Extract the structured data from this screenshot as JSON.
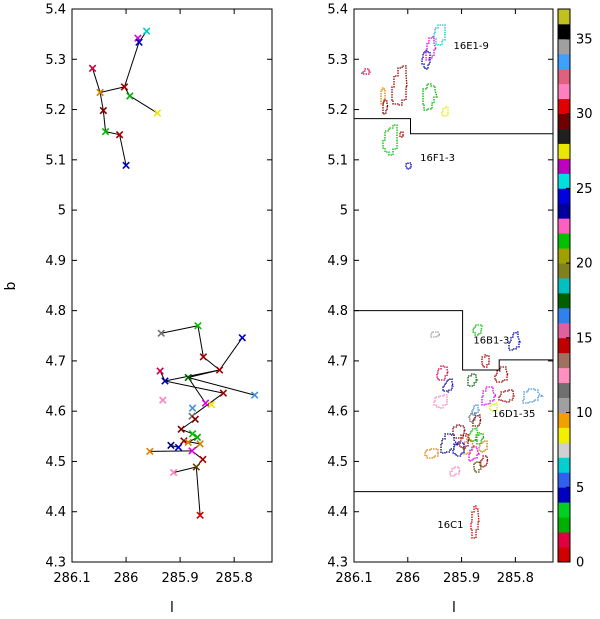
{
  "chart_data": [
    {
      "type": "scatter",
      "title": "",
      "xlabel": "l",
      "ylabel": "b",
      "xlim": [
        286.1,
        285.73
      ],
      "ylim": [
        4.3,
        5.4
      ],
      "xticks": [
        286.1,
        286.0,
        285.9,
        285.8
      ],
      "xtick_labels": [
        "286.1",
        "286",
        "285.9",
        "285.8"
      ],
      "yticks": [
        4.3,
        4.4,
        4.5,
        4.6,
        4.7,
        4.8,
        4.9,
        5.0,
        5.1,
        5.2,
        5.3,
        5.4
      ],
      "ytick_labels": [
        "4.3",
        "4.4",
        "4.5",
        "4.6",
        "4.7",
        "4.8",
        "4.9",
        "5",
        "5.1",
        "5.2",
        "5.3",
        "5.4"
      ],
      "points": [
        {
          "l": 285.962,
          "b": 5.356,
          "color": "#00c8c8"
        },
        {
          "l": 285.978,
          "b": 5.342,
          "color": "#e000e0"
        },
        {
          "l": 285.976,
          "b": 5.334,
          "color": "#0000b0"
        },
        {
          "l": 286.062,
          "b": 5.282,
          "color": "#d00040"
        },
        {
          "l": 286.048,
          "b": 5.234,
          "color": "#d08000"
        },
        {
          "l": 286.003,
          "b": 5.245,
          "color": "#a00000"
        },
        {
          "l": 285.993,
          "b": 5.227,
          "color": "#00b000"
        },
        {
          "l": 285.942,
          "b": 5.193,
          "color": "#e8e800"
        },
        {
          "l": 286.042,
          "b": 5.198,
          "color": "#800000"
        },
        {
          "l": 286.038,
          "b": 5.156,
          "color": "#00c000"
        },
        {
          "l": 286.012,
          "b": 5.15,
          "color": "#a00000"
        },
        {
          "l": 286.0,
          "b": 5.089,
          "color": "#0000c0"
        },
        {
          "l": 285.935,
          "b": 4.755,
          "color": "#707070"
        },
        {
          "l": 285.867,
          "b": 4.77,
          "color": "#00c000"
        },
        {
          "l": 285.785,
          "b": 4.746,
          "color": "#0000c0"
        },
        {
          "l": 285.857,
          "b": 4.708,
          "color": "#a00000"
        },
        {
          "l": 285.827,
          "b": 4.682,
          "color": "#a00000"
        },
        {
          "l": 285.937,
          "b": 4.68,
          "color": "#d00040"
        },
        {
          "l": 285.928,
          "b": 4.66,
          "color": "#0000b0"
        },
        {
          "l": 285.885,
          "b": 4.667,
          "color": "#006000"
        },
        {
          "l": 285.82,
          "b": 4.636,
          "color": "#a00000"
        },
        {
          "l": 285.762,
          "b": 4.632,
          "color": "#4090e0"
        },
        {
          "l": 285.932,
          "b": 4.622,
          "color": "#ff80c0"
        },
        {
          "l": 285.853,
          "b": 4.616,
          "color": "#e000e0"
        },
        {
          "l": 285.842,
          "b": 4.613,
          "color": "#e8e800"
        },
        {
          "l": 285.877,
          "b": 4.606,
          "color": "#4090e0"
        },
        {
          "l": 285.878,
          "b": 4.59,
          "color": "#707070"
        },
        {
          "l": 285.872,
          "b": 4.584,
          "color": "#800000"
        },
        {
          "l": 285.898,
          "b": 4.564,
          "color": "#800000"
        },
        {
          "l": 285.877,
          "b": 4.555,
          "color": "#00c000"
        },
        {
          "l": 285.868,
          "b": 4.548,
          "color": "#00b000"
        },
        {
          "l": 285.893,
          "b": 4.541,
          "color": "#a00000"
        },
        {
          "l": 285.885,
          "b": 4.538,
          "color": "#d08000"
        },
        {
          "l": 285.863,
          "b": 4.535,
          "color": "#d08000"
        },
        {
          "l": 285.917,
          "b": 4.532,
          "color": "#000080"
        },
        {
          "l": 285.903,
          "b": 4.528,
          "color": "#0000c0"
        },
        {
          "l": 285.878,
          "b": 4.521,
          "color": "#e000e0"
        },
        {
          "l": 285.956,
          "b": 4.52,
          "color": "#e08000"
        },
        {
          "l": 285.858,
          "b": 4.504,
          "color": "#a00000"
        },
        {
          "l": 285.87,
          "b": 4.489,
          "color": "#604000"
        },
        {
          "l": 285.912,
          "b": 4.478,
          "color": "#ff80c0"
        },
        {
          "l": 285.863,
          "b": 4.393,
          "color": "#d00000"
        }
      ],
      "links": [
        [
          0,
          2
        ],
        [
          1,
          2
        ],
        [
          2,
          5
        ],
        [
          3,
          4
        ],
        [
          4,
          5
        ],
        [
          5,
          6
        ],
        [
          6,
          7
        ],
        [
          4,
          8
        ],
        [
          8,
          9
        ],
        [
          9,
          10
        ],
        [
          10,
          11
        ],
        [
          12,
          13
        ],
        [
          13,
          15
        ],
        [
          15,
          16
        ],
        [
          14,
          16
        ],
        [
          16,
          19
        ],
        [
          19,
          21
        ],
        [
          16,
          18
        ],
        [
          17,
          18
        ],
        [
          18,
          20
        ],
        [
          19,
          23
        ],
        [
          20,
          26
        ],
        [
          26,
          27
        ],
        [
          27,
          28
        ],
        [
          28,
          29
        ],
        [
          29,
          30
        ],
        [
          30,
          32
        ],
        [
          31,
          33
        ],
        [
          31,
          35
        ],
        [
          34,
          35
        ],
        [
          33,
          36
        ],
        [
          36,
          37
        ],
        [
          36,
          38
        ],
        [
          38,
          39
        ],
        [
          39,
          40
        ],
        [
          39,
          41
        ]
      ]
    },
    {
      "type": "contour-map",
      "title": "",
      "xlabel": "l",
      "ylabel": "",
      "xlim": [
        286.1,
        285.73
      ],
      "ylim": [
        4.3,
        5.4
      ],
      "xticks": [
        286.1,
        286.0,
        285.9,
        285.8
      ],
      "xtick_labels": [
        "286.1",
        "286",
        "285.9",
        "285.8"
      ],
      "yticks": [
        4.3,
        4.4,
        4.5,
        4.6,
        4.7,
        4.8,
        4.9,
        5.0,
        5.1,
        5.2,
        5.3,
        5.4
      ],
      "ytick_labels": [
        "4.3",
        "4.4",
        "4.5",
        "4.6",
        "4.7",
        "4.8",
        "4.9",
        "5",
        "5.1",
        "5.2",
        "5.3",
        "5.4"
      ],
      "annotations": [
        {
          "text": "16E1-9",
          "l": 285.915,
          "b": 5.32
        },
        {
          "text": "16F1-3",
          "l": 285.977,
          "b": 5.098
        },
        {
          "text": "16B1-3",
          "l": 285.878,
          "b": 4.735
        },
        {
          "text": "16D1-35",
          "l": 285.843,
          "b": 4.588
        },
        {
          "text": "16C1",
          "l": 285.945,
          "b": 4.368
        }
      ],
      "boundaries": [
        [
          [
            286.1,
            5.182
          ],
          [
            285.995,
            5.182
          ],
          [
            285.995,
            5.152
          ],
          [
            285.73,
            5.152
          ]
        ],
        [
          [
            286.1,
            4.8
          ],
          [
            285.898,
            4.8
          ],
          [
            285.898,
            4.682
          ],
          [
            285.83,
            4.682
          ],
          [
            285.83,
            4.702
          ],
          [
            285.73,
            4.702
          ]
        ],
        [
          [
            286.1,
            4.44
          ],
          [
            285.73,
            4.44
          ]
        ]
      ],
      "clouds": [
        {
          "color": "#00c8c8",
          "l": 285.94,
          "b": 5.35,
          "w": 0.024,
          "h": 0.045
        },
        {
          "color": "#e000e0",
          "l": 285.958,
          "b": 5.32,
          "w": 0.02,
          "h": 0.05
        },
        {
          "color": "#0000b0",
          "l": 285.965,
          "b": 5.3,
          "w": 0.018,
          "h": 0.04
        },
        {
          "color": "#d00040",
          "l": 286.078,
          "b": 5.275,
          "w": 0.014,
          "h": 0.012
        },
        {
          "color": "#e08000",
          "l": 286.046,
          "b": 5.228,
          "w": 0.01,
          "h": 0.035
        },
        {
          "color": "#a00000",
          "l": 286.015,
          "b": 5.245,
          "w": 0.03,
          "h": 0.09
        },
        {
          "color": "#00b000",
          "l": 285.96,
          "b": 5.225,
          "w": 0.03,
          "h": 0.055
        },
        {
          "color": "#e8e800",
          "l": 285.93,
          "b": 5.195,
          "w": 0.012,
          "h": 0.02
        },
        {
          "color": "#800000",
          "l": 286.042,
          "b": 5.205,
          "w": 0.012,
          "h": 0.03
        },
        {
          "color": "#00c000",
          "l": 286.032,
          "b": 5.14,
          "w": 0.03,
          "h": 0.065
        },
        {
          "color": "#a00000",
          "l": 286.012,
          "b": 5.15,
          "w": 0.008,
          "h": 0.01
        },
        {
          "color": "#0000c0",
          "l": 285.998,
          "b": 5.088,
          "w": 0.012,
          "h": 0.014
        },
        {
          "color": "#a0a0a0",
          "l": 285.95,
          "b": 4.752,
          "w": 0.018,
          "h": 0.012
        },
        {
          "color": "#00c000",
          "l": 285.87,
          "b": 4.762,
          "w": 0.018,
          "h": 0.022
        },
        {
          "color": "#0000c0",
          "l": 285.802,
          "b": 4.738,
          "w": 0.022,
          "h": 0.04
        },
        {
          "color": "#a00000",
          "l": 285.855,
          "b": 4.7,
          "w": 0.016,
          "h": 0.025
        },
        {
          "color": "#a00000",
          "l": 285.826,
          "b": 4.672,
          "w": 0.024,
          "h": 0.035
        },
        {
          "color": "#d00040",
          "l": 285.935,
          "b": 4.676,
          "w": 0.024,
          "h": 0.03
        },
        {
          "color": "#0000b0",
          "l": 285.925,
          "b": 4.65,
          "w": 0.018,
          "h": 0.028
        },
        {
          "color": "#006000",
          "l": 285.88,
          "b": 4.662,
          "w": 0.02,
          "h": 0.025
        },
        {
          "color": "#a00000",
          "l": 285.816,
          "b": 4.63,
          "w": 0.03,
          "h": 0.028
        },
        {
          "color": "#4090e0",
          "l": 285.77,
          "b": 4.63,
          "w": 0.04,
          "h": 0.03
        },
        {
          "color": "#ff80c0",
          "l": 285.938,
          "b": 4.62,
          "w": 0.028,
          "h": 0.03
        },
        {
          "color": "#e000e0",
          "l": 285.85,
          "b": 4.63,
          "w": 0.03,
          "h": 0.04
        },
        {
          "color": "#e8e800",
          "l": 285.84,
          "b": 4.608,
          "w": 0.016,
          "h": 0.018
        },
        {
          "color": "#4090e0",
          "l": 285.875,
          "b": 4.602,
          "w": 0.014,
          "h": 0.02
        },
        {
          "color": "#707070",
          "l": 285.88,
          "b": 4.588,
          "w": 0.012,
          "h": 0.02
        },
        {
          "color": "#800000",
          "l": 285.872,
          "b": 4.58,
          "w": 0.016,
          "h": 0.025
        },
        {
          "color": "#800000",
          "l": 285.905,
          "b": 4.56,
          "w": 0.026,
          "h": 0.03
        },
        {
          "color": "#00c000",
          "l": 285.878,
          "b": 4.552,
          "w": 0.018,
          "h": 0.03
        },
        {
          "color": "#00b000",
          "l": 285.866,
          "b": 4.546,
          "w": 0.016,
          "h": 0.025
        },
        {
          "color": "#a00000",
          "l": 285.895,
          "b": 4.54,
          "w": 0.018,
          "h": 0.03
        },
        {
          "color": "#d08000",
          "l": 285.887,
          "b": 4.53,
          "w": 0.022,
          "h": 0.03
        },
        {
          "color": "#d08000",
          "l": 285.86,
          "b": 4.53,
          "w": 0.016,
          "h": 0.025
        },
        {
          "color": "#000080",
          "l": 285.925,
          "b": 4.535,
          "w": 0.034,
          "h": 0.04
        },
        {
          "color": "#0000c0",
          "l": 285.905,
          "b": 4.525,
          "w": 0.024,
          "h": 0.03
        },
        {
          "color": "#e000e0",
          "l": 285.878,
          "b": 4.515,
          "w": 0.02,
          "h": 0.03
        },
        {
          "color": "#e08000",
          "l": 285.955,
          "b": 4.516,
          "w": 0.028,
          "h": 0.02
        },
        {
          "color": "#a00000",
          "l": 285.858,
          "b": 4.5,
          "w": 0.016,
          "h": 0.025
        },
        {
          "color": "#604000",
          "l": 285.87,
          "b": 4.49,
          "w": 0.016,
          "h": 0.022
        },
        {
          "color": "#ff80c0",
          "l": 285.912,
          "b": 4.48,
          "w": 0.02,
          "h": 0.02
        },
        {
          "color": "#d00000",
          "l": 285.875,
          "b": 4.38,
          "w": 0.016,
          "h": 0.07
        }
      ],
      "colorbar": {
        "min": 0,
        "max": 37,
        "ticks": [
          0,
          5,
          10,
          15,
          20,
          25,
          30,
          35
        ],
        "tick_labels": [
          "0",
          "5",
          "10",
          "15",
          "20",
          "25",
          "30",
          "35"
        ],
        "colors": [
          "#d00000",
          "#e00040",
          "#00b000",
          "#00d020",
          "#0000c0",
          "#3060f0",
          "#00d0d0",
          "#d0d0d0",
          "#f0f000",
          "#f0a000",
          "#a0a0a0",
          "#707070",
          "#ff90c0",
          "#a07060",
          "#c00000",
          "#e060a0",
          "#3080f0",
          "#006000",
          "#00c0c0",
          "#808020",
          "#a0a000",
          "#00c000",
          "#ff60c0",
          "#0000a0",
          "#0000e0",
          "#00e0e0",
          "#c000c0",
          "#e8e800",
          "#202020",
          "#700000",
          "#e00000",
          "#ff80c0",
          "#e06080",
          "#40a0ff",
          "#a0a0a0",
          "#000000",
          "#c0c020"
        ]
      }
    }
  ]
}
